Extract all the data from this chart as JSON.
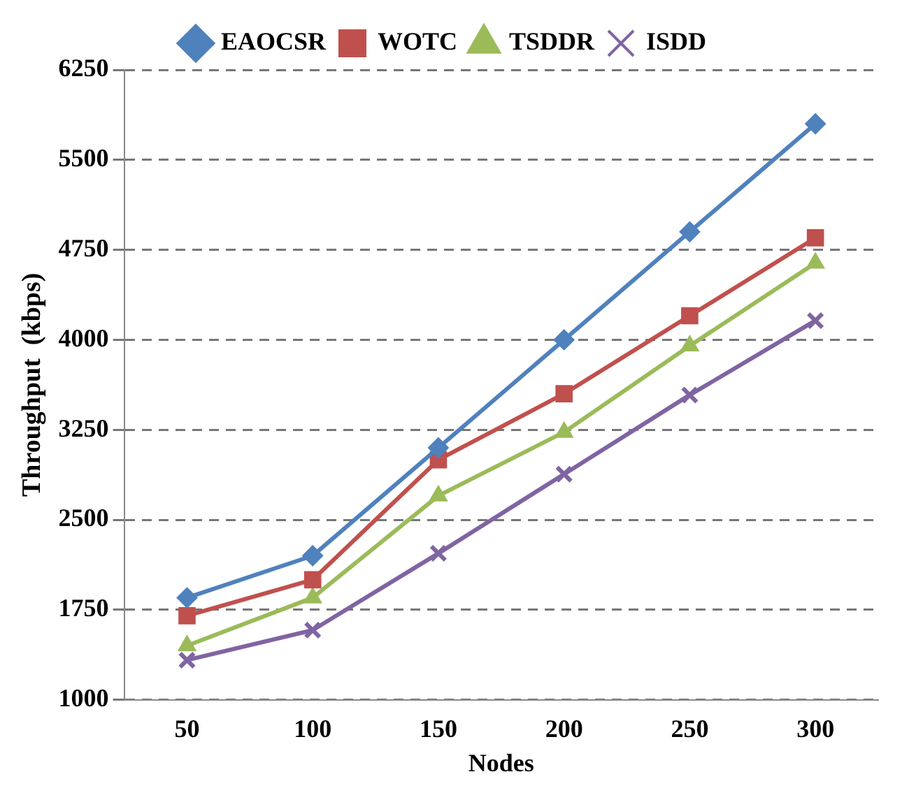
{
  "chart_data": {
    "type": "line",
    "xlabel": "Nodes",
    "ylabel": "Throughput  (kbps)",
    "categories": [
      "50",
      "100",
      "150",
      "200",
      "250",
      "300"
    ],
    "series": [
      {
        "name": "EAOCSR",
        "color": "#4f81bd",
        "marker": "diamond",
        "values": [
          1850,
          2200,
          3100,
          4000,
          4900,
          5800
        ]
      },
      {
        "name": "WOTC",
        "color": "#c0504d",
        "marker": "square",
        "values": [
          1700,
          2000,
          3000,
          3550,
          4200,
          4850
        ]
      },
      {
        "name": "TSDDR",
        "color": "#9bbb59",
        "marker": "triangle",
        "values": [
          1450,
          1850,
          2700,
          3230,
          3950,
          4640
        ]
      },
      {
        "name": "ISDD",
        "color": "#8064a2",
        "marker": "cross",
        "values": [
          1330,
          1580,
          2220,
          2880,
          3540,
          4160
        ]
      }
    ],
    "ylim": [
      1000,
      6250
    ],
    "yticks": [
      1000,
      1750,
      2500,
      3250,
      4000,
      4750,
      5500,
      6250
    ],
    "grid": "y",
    "legend": "top"
  }
}
